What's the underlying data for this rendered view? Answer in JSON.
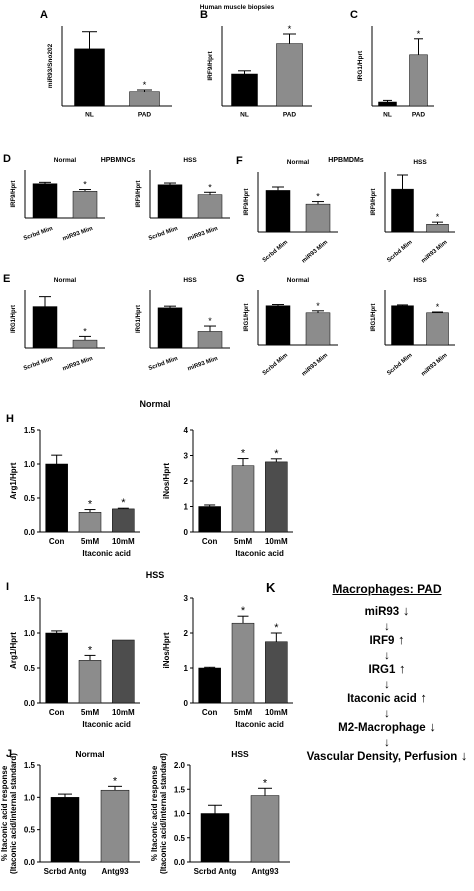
{
  "page": {
    "row1_title": "Human muscle biopsies",
    "hpbmncs_title": "HPBMNCs",
    "hpbmdms_title": "HPBMDMs",
    "normal_title_h": "Normal",
    "hss_title_i": "HSS"
  },
  "pathway": {
    "letter": "K",
    "title": "Macrophages: PAD",
    "arrow": "↓",
    "steps": [
      {
        "label": "miR93",
        "dir": "↓"
      },
      {
        "label": "IRF9",
        "dir": "↑"
      },
      {
        "label": "IRG1",
        "dir": "↑"
      },
      {
        "label": "Itaconic acid",
        "dir": "↑"
      },
      {
        "label": "M2-Macrophage",
        "dir": "↓"
      },
      {
        "label": "Vascular Density, Perfusion",
        "dir": "↓"
      }
    ]
  },
  "chart_data": [
    {
      "id": "A",
      "type": "bar",
      "letter": "A",
      "title": "",
      "ylabel": "miR93/Sno202",
      "categories": [
        "NL",
        "PAD"
      ],
      "values": [
        1.0,
        0.25
      ],
      "errors": [
        0.3,
        0.03
      ],
      "sig": [
        false,
        true
      ],
      "colors": [
        "#000000",
        "#8c8c8c"
      ],
      "ylim": [
        0,
        1.4
      ],
      "yticks": [],
      "xgroup": ""
    },
    {
      "id": "B",
      "type": "bar",
      "letter": "B",
      "title": "",
      "ylabel": "IRF9/Hprt",
      "categories": [
        "NL",
        "PAD"
      ],
      "values": [
        1.0,
        1.95
      ],
      "errors": [
        0.1,
        0.3
      ],
      "sig": [
        false,
        true
      ],
      "colors": [
        "#000000",
        "#8c8c8c"
      ],
      "ylim": [
        0,
        2.5
      ],
      "yticks": [],
      "xgroup": ""
    },
    {
      "id": "C",
      "type": "bar",
      "letter": "C",
      "title": "",
      "ylabel": "IRG1/Hprt",
      "categories": [
        "NL",
        "PAD"
      ],
      "values": [
        1.0,
        12.8
      ],
      "errors": [
        0.4,
        4.0
      ],
      "sig": [
        false,
        true
      ],
      "colors": [
        "#000000",
        "#8c8c8c"
      ],
      "ylim": [
        0,
        20
      ],
      "yticks": [],
      "xgroup": ""
    },
    {
      "id": "D1",
      "type": "bar",
      "letter": "D",
      "title": "Normal",
      "ylabel": "IRF9/Hprt",
      "categories": [
        "Scrbd Mim",
        "miR93 Mim"
      ],
      "values": [
        1.0,
        0.78
      ],
      "errors": [
        0.04,
        0.05
      ],
      "sig": [
        false,
        true
      ],
      "colors": [
        "#000000",
        "#8c8c8c"
      ],
      "ylim": [
        0,
        1.4
      ],
      "yticks": [],
      "xgroup": ""
    },
    {
      "id": "D2",
      "type": "bar",
      "letter": "",
      "title": "HSS",
      "ylabel": "IRF9/Hprt",
      "categories": [
        "Scrbd Mim",
        "miR93 Mim"
      ],
      "values": [
        0.97,
        0.68
      ],
      "errors": [
        0.05,
        0.07
      ],
      "sig": [
        false,
        true
      ],
      "colors": [
        "#000000",
        "#8c8c8c"
      ],
      "ylim": [
        0,
        1.4
      ],
      "yticks": [],
      "xgroup": ""
    },
    {
      "id": "F1",
      "type": "bar",
      "letter": "F",
      "title": "Normal",
      "ylabel": "IRF9/Hprt",
      "categories": [
        "Scrbd Mim",
        "miR93 Mim"
      ],
      "values": [
        0.97,
        0.65
      ],
      "errors": [
        0.08,
        0.06
      ],
      "sig": [
        false,
        true
      ],
      "colors": [
        "#000000",
        "#8c8c8c"
      ],
      "ylim": [
        0,
        1.4
      ],
      "yticks": [],
      "xgroup": ""
    },
    {
      "id": "F2",
      "type": "bar",
      "letter": "",
      "title": "HSS",
      "ylabel": "IRF9/Hprt",
      "categories": [
        "Scrbd Mim",
        "miR93 Mim"
      ],
      "values": [
        1.0,
        0.18
      ],
      "errors": [
        0.33,
        0.05
      ],
      "sig": [
        false,
        true
      ],
      "colors": [
        "#000000",
        "#8c8c8c"
      ],
      "ylim": [
        0,
        1.4
      ],
      "yticks": [],
      "xgroup": ""
    },
    {
      "id": "E1",
      "type": "bar",
      "letter": "E",
      "title": "Normal",
      "ylabel": "IRG1/Hprt",
      "categories": [
        "Scrbd Mim",
        "miR93 Mim"
      ],
      "values": [
        1.0,
        0.19
      ],
      "errors": [
        0.24,
        0.09
      ],
      "sig": [
        false,
        true
      ],
      "colors": [
        "#000000",
        "#8c8c8c"
      ],
      "ylim": [
        0,
        1.4
      ],
      "yticks": [],
      "xgroup": ""
    },
    {
      "id": "E2",
      "type": "bar",
      "letter": "",
      "title": "HSS",
      "ylabel": "IRG1/Hprt",
      "categories": [
        "Scrbd Mim",
        "miR93 Mim"
      ],
      "values": [
        0.97,
        0.4
      ],
      "errors": [
        0.04,
        0.13
      ],
      "sig": [
        false,
        true
      ],
      "colors": [
        "#000000",
        "#8c8c8c"
      ],
      "ylim": [
        0,
        1.4
      ],
      "yticks": [],
      "xgroup": ""
    },
    {
      "id": "G1",
      "type": "bar",
      "letter": "G",
      "title": "Normal",
      "ylabel": "IRG1/Hprt",
      "categories": [
        "Scrbd Mim",
        "miR93 Mim"
      ],
      "values": [
        1.0,
        0.82
      ],
      "errors": [
        0.03,
        0.05
      ],
      "sig": [
        false,
        true
      ],
      "colors": [
        "#000000",
        "#8c8c8c"
      ],
      "ylim": [
        0,
        1.4
      ],
      "yticks": [],
      "xgroup": ""
    },
    {
      "id": "G2",
      "type": "bar",
      "letter": "",
      "title": "HSS",
      "ylabel": "IRG1/Hprt",
      "categories": [
        "Scrbd Mim",
        "miR93 Mim"
      ],
      "values": [
        1.0,
        0.82
      ],
      "errors": [
        0.02,
        0.02
      ],
      "sig": [
        false,
        true
      ],
      "colors": [
        "#000000",
        "#8c8c8c"
      ],
      "ylim": [
        0,
        1.4
      ],
      "yticks": [],
      "xgroup": ""
    },
    {
      "id": "H1",
      "type": "bar",
      "letter": "H",
      "title": "",
      "ylabel": "Arg1/Hprt",
      "categories": [
        "Con",
        "5mM",
        "10mM"
      ],
      "values": [
        1.0,
        0.29,
        0.34
      ],
      "errors": [
        0.13,
        0.04,
        0.01
      ],
      "sig": [
        false,
        true,
        true
      ],
      "colors": [
        "#000000",
        "#8c8c8c",
        "#4d4d4d"
      ],
      "ylim": [
        0,
        1.5
      ],
      "yticks": [
        "0.0",
        "0.5",
        "1.0",
        "1.5"
      ],
      "xgroup": "Itaconic acid"
    },
    {
      "id": "H2",
      "type": "bar",
      "letter": "",
      "title": "",
      "ylabel": "iNos/Hprt",
      "categories": [
        "Con",
        "5mM",
        "10mM"
      ],
      "values": [
        1.0,
        2.6,
        2.75
      ],
      "errors": [
        0.06,
        0.28,
        0.12
      ],
      "sig": [
        false,
        true,
        true
      ],
      "colors": [
        "#000000",
        "#8c8c8c",
        "#4d4d4d"
      ],
      "ylim": [
        0,
        4
      ],
      "yticks": [
        "0",
        "1",
        "2",
        "3",
        "4"
      ],
      "xgroup": "Itaconic acid"
    },
    {
      "id": "I1",
      "type": "bar",
      "letter": "I",
      "title": "",
      "ylabel": "Arg1/Hprt",
      "categories": [
        "Con",
        "5mM",
        "10mM"
      ],
      "values": [
        1.0,
        0.61,
        0.9
      ],
      "errors": [
        0.03,
        0.07,
        0.0
      ],
      "sig": [
        false,
        true,
        false
      ],
      "colors": [
        "#000000",
        "#8c8c8c",
        "#4d4d4d"
      ],
      "ylim": [
        0,
        1.5
      ],
      "yticks": [
        "0.0",
        "0.5",
        "1.0",
        "1.5"
      ],
      "xgroup": "Itaconic acid"
    },
    {
      "id": "I2",
      "type": "bar",
      "letter": "",
      "title": "",
      "ylabel": "iNos/Hprt",
      "categories": [
        "Con",
        "5mM",
        "10mM"
      ],
      "values": [
        1.0,
        2.28,
        1.75
      ],
      "errors": [
        0.02,
        0.2,
        0.25
      ],
      "sig": [
        false,
        true,
        true
      ],
      "colors": [
        "#000000",
        "#8c8c8c",
        "#4d4d4d"
      ],
      "ylim": [
        0,
        3
      ],
      "yticks": [
        "0",
        "1",
        "2",
        "3"
      ],
      "xgroup": "Itaconic acid"
    },
    {
      "id": "J1",
      "type": "bar",
      "letter": "J",
      "title": "Normal",
      "ylabel": "% Itaconic acid response\n(Itaconic acid/internal standard)",
      "categories": [
        "Scrbd Antg",
        "Antg93"
      ],
      "values": [
        1.0,
        1.11
      ],
      "errors": [
        0.05,
        0.06
      ],
      "sig": [
        false,
        true
      ],
      "colors": [
        "#000000",
        "#8c8c8c"
      ],
      "ylim": [
        0,
        1.5
      ],
      "yticks": [
        "0.0",
        "0.5",
        "1.0",
        "1.5"
      ],
      "xgroup": ""
    },
    {
      "id": "J2",
      "type": "bar",
      "letter": "",
      "title": "HSS",
      "ylabel": "% Itaconic acid response\n(Itaconic acid/internal standard)",
      "categories": [
        "Scrbd Antg",
        "Antg93"
      ],
      "values": [
        1.0,
        1.37
      ],
      "errors": [
        0.17,
        0.15
      ],
      "sig": [
        false,
        true
      ],
      "colors": [
        "#000000",
        "#8c8c8c"
      ],
      "ylim": [
        0,
        2.0
      ],
      "yticks": [
        "0.0",
        "0.5",
        "1.0",
        "1.5",
        "2.0"
      ],
      "xgroup": ""
    }
  ]
}
